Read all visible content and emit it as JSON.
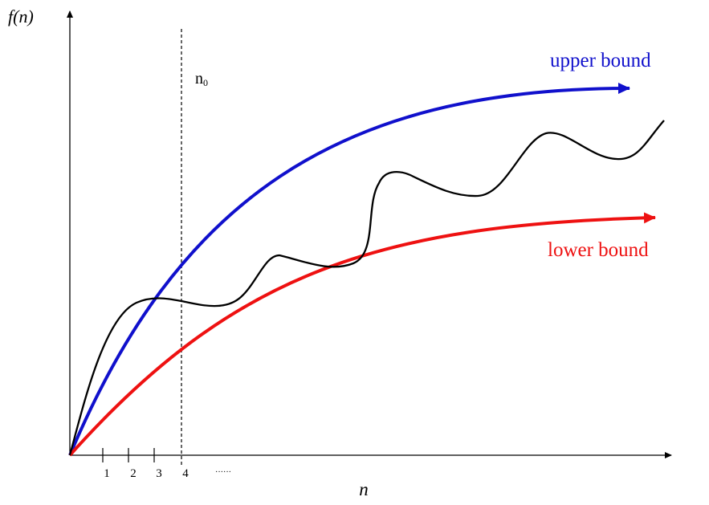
{
  "axes": {
    "y_label_func": "f",
    "y_label_arg": "(n)",
    "x_label": "n",
    "x_ticks": [
      "1",
      "2",
      "3",
      "4"
    ],
    "x_ellipsis": "······"
  },
  "threshold": {
    "label_main": "n",
    "label_sub": "0"
  },
  "curves": {
    "upper_label": "upper bound",
    "lower_label": "lower bound",
    "upper_color": "#1010cc",
    "lower_color": "#ee1111",
    "function_color": "#000000"
  }
}
